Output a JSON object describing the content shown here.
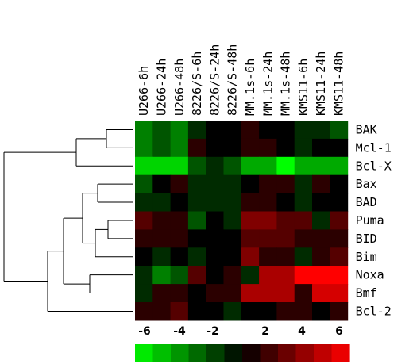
{
  "chart_data": {
    "type": "heatmap",
    "columns": [
      "U266-6h",
      "U266-24h",
      "U266-48h",
      "8226/S-6h",
      "8226/S-24h",
      "8226/S-48h",
      "MM.1s-6h",
      "MM.1s-24h",
      "MM.1s-48h",
      "KMS11-6h",
      "KMS11-24h",
      "KMS11-48h"
    ],
    "rows": [
      "BAK",
      "Mcl-1",
      "Bcl-X",
      "Bax",
      "BAD",
      "Puma",
      "BID",
      "Bim",
      "Noxa",
      "Bmf",
      "Bcl-2"
    ],
    "values": [
      [
        -3,
        -2,
        -3,
        -1,
        0,
        0,
        1,
        0,
        0,
        -1,
        -1,
        -2
      ],
      [
        -3,
        -2,
        -3,
        1,
        0,
        0,
        1,
        1,
        0,
        -1,
        0,
        0
      ],
      [
        -5,
        -5,
        -5,
        -2,
        -1,
        -2,
        -4,
        -4,
        -6,
        -4,
        -4,
        -4
      ],
      [
        -2,
        0,
        1,
        -1,
        -1,
        -1,
        0,
        1,
        1,
        -1,
        1,
        0
      ],
      [
        -1,
        -1,
        0,
        -1,
        -1,
        -1,
        1,
        1,
        0,
        -1,
        0,
        0
      ],
      [
        2,
        1,
        1,
        -2,
        0,
        -1,
        3,
        3,
        2,
        2,
        -1,
        2
      ],
      [
        1,
        1,
        1,
        0,
        0,
        0,
        2,
        2,
        2,
        1,
        1,
        1
      ],
      [
        0,
        -1,
        0,
        -1,
        0,
        0,
        3,
        1,
        1,
        -1,
        1,
        2
      ],
      [
        -1,
        -3,
        -2,
        2,
        0,
        1,
        -1,
        4,
        4,
        6,
        6,
        6
      ],
      [
        -1,
        1,
        1,
        0,
        1,
        1,
        4,
        4,
        4,
        1,
        5,
        5
      ],
      [
        1,
        1,
        2,
        0,
        0,
        -1,
        0,
        0,
        1,
        1,
        0,
        1
      ]
    ],
    "color_scale": {
      "labels": [
        "-6",
        "-4",
        "-2",
        "2",
        "4",
        "6"
      ],
      "low_color": "#00ff00",
      "mid_color": "#000000",
      "high_color": "#ff0000"
    }
  }
}
